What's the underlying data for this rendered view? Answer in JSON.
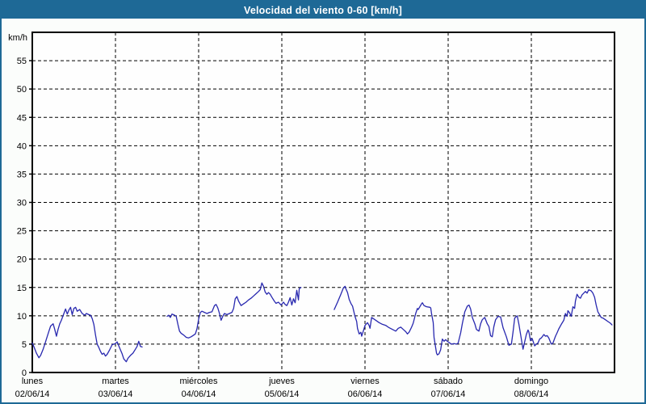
{
  "window": {
    "title": "Velocidad del viento 0-60 [km/h]"
  },
  "colors": {
    "titlebar_bg": "#1e6996",
    "titlebar_text": "#ffffff",
    "frame_border": "#1e6996",
    "page_bg": "#fbfdfb",
    "plot_bg": "#fefefe",
    "grid": "#000000",
    "axis": "#000000",
    "text": "#000000",
    "line": "#2828af"
  },
  "chart_data": {
    "type": "line",
    "title": "Velocidad del viento 0-60 [km/h]",
    "ylabel": "km/h",
    "xlabel": "",
    "y_unit_label": "km/h",
    "ylim": [
      0,
      60
    ],
    "y_ticks": [
      0,
      5,
      10,
      15,
      20,
      25,
      30,
      35,
      40,
      45,
      50,
      55
    ],
    "x_days": 7,
    "grid": "dashed",
    "legend_position": "none",
    "x_ticks": [
      {
        "day_name": "lunes",
        "date": "02/06/14"
      },
      {
        "day_name": "martes",
        "date": "03/06/14"
      },
      {
        "day_name": "miércoles",
        "date": "04/06/14"
      },
      {
        "day_name": "jueves",
        "date": "05/06/14"
      },
      {
        "day_name": "viernes",
        "date": "06/06/14"
      },
      {
        "day_name": "sábado",
        "date": "07/06/14"
      },
      {
        "day_name": "domingo",
        "date": "08/06/14"
      }
    ],
    "series": [
      {
        "name": "Velocidad del viento",
        "unit": "km/h",
        "x_unit": "days_since_monday_00h",
        "segments": [
          [
            [
              0.0,
              5.2
            ],
            [
              0.02,
              4.5
            ],
            [
              0.05,
              3.4
            ],
            [
              0.08,
              2.6
            ],
            [
              0.1,
              3.0
            ],
            [
              0.13,
              4.1
            ],
            [
              0.15,
              5.0
            ],
            [
              0.17,
              5.9
            ],
            [
              0.2,
              7.3
            ],
            [
              0.22,
              8.2
            ],
            [
              0.25,
              8.6
            ],
            [
              0.27,
              7.6
            ],
            [
              0.29,
              6.4
            ],
            [
              0.31,
              7.6
            ],
            [
              0.33,
              8.6
            ],
            [
              0.35,
              9.2
            ],
            [
              0.38,
              10.4
            ],
            [
              0.4,
              11.2
            ],
            [
              0.42,
              10.3
            ],
            [
              0.44,
              11.0
            ],
            [
              0.46,
              11.5
            ],
            [
              0.48,
              10.2
            ],
            [
              0.5,
              11.3
            ],
            [
              0.52,
              11.5
            ],
            [
              0.54,
              10.8
            ],
            [
              0.57,
              11.1
            ],
            [
              0.6,
              10.4
            ],
            [
              0.63,
              10.1
            ],
            [
              0.65,
              10.4
            ],
            [
              0.68,
              10.2
            ],
            [
              0.7,
              10.1
            ],
            [
              0.72,
              9.5
            ],
            [
              0.74,
              8.5
            ],
            [
              0.76,
              6.6
            ],
            [
              0.78,
              5.0
            ],
            [
              0.8,
              4.4
            ],
            [
              0.82,
              3.7
            ],
            [
              0.84,
              3.2
            ],
            [
              0.86,
              3.4
            ],
            [
              0.88,
              2.9
            ],
            [
              0.9,
              3.2
            ],
            [
              0.93,
              4.0
            ],
            [
              0.96,
              4.9
            ],
            [
              1.0,
              5.1
            ],
            [
              1.02,
              5.4
            ],
            [
              1.05,
              4.3
            ],
            [
              1.08,
              3.3
            ],
            [
              1.1,
              2.4
            ],
            [
              1.13,
              1.9
            ],
            [
              1.15,
              2.5
            ],
            [
              1.18,
              3.0
            ],
            [
              1.21,
              3.4
            ],
            [
              1.24,
              4.1
            ],
            [
              1.26,
              4.6
            ],
            [
              1.28,
              5.5
            ],
            [
              1.3,
              4.6
            ],
            [
              1.32,
              4.5
            ]
          ],
          [
            [
              1.62,
              9.9
            ],
            [
              1.64,
              10.1
            ],
            [
              1.66,
              9.7
            ],
            [
              1.68,
              10.3
            ],
            [
              1.71,
              10.1
            ],
            [
              1.73,
              9.9
            ],
            [
              1.75,
              8.5
            ],
            [
              1.77,
              7.3
            ],
            [
              1.79,
              6.9
            ],
            [
              1.82,
              6.6
            ],
            [
              1.85,
              6.2
            ],
            [
              1.88,
              6.1
            ],
            [
              1.91,
              6.3
            ],
            [
              1.93,
              6.5
            ],
            [
              1.96,
              6.8
            ],
            [
              1.98,
              7.7
            ],
            [
              2.0,
              9.4
            ],
            [
              2.02,
              10.6
            ],
            [
              2.04,
              10.8
            ],
            [
              2.07,
              10.6
            ],
            [
              2.1,
              10.4
            ],
            [
              2.13,
              10.6
            ],
            [
              2.16,
              10.7
            ],
            [
              2.19,
              11.8
            ],
            [
              2.21,
              12.0
            ],
            [
              2.23,
              11.4
            ],
            [
              2.25,
              10.4
            ],
            [
              2.27,
              9.2
            ],
            [
              2.29,
              9.9
            ],
            [
              2.31,
              10.4
            ],
            [
              2.34,
              10.2
            ],
            [
              2.37,
              10.4
            ],
            [
              2.4,
              10.6
            ],
            [
              2.42,
              11.3
            ],
            [
              2.44,
              13.0
            ],
            [
              2.46,
              13.4
            ],
            [
              2.48,
              12.6
            ],
            [
              2.51,
              11.8
            ],
            [
              2.54,
              12.1
            ],
            [
              2.57,
              12.4
            ],
            [
              2.6,
              12.8
            ],
            [
              2.63,
              13.1
            ],
            [
              2.66,
              13.5
            ],
            [
              2.69,
              13.9
            ],
            [
              2.72,
              14.3
            ],
            [
              2.74,
              14.6
            ],
            [
              2.76,
              15.8
            ],
            [
              2.78,
              15.2
            ],
            [
              2.8,
              14.2
            ],
            [
              2.82,
              13.8
            ],
            [
              2.84,
              14.1
            ],
            [
              2.86,
              13.8
            ],
            [
              2.88,
              13.3
            ],
            [
              2.91,
              12.6
            ],
            [
              2.93,
              12.2
            ],
            [
              2.96,
              12.4
            ],
            [
              2.99,
              11.9
            ],
            [
              3.02,
              12.4
            ],
            [
              3.04,
              12.0
            ],
            [
              3.06,
              11.8
            ],
            [
              3.08,
              12.4
            ],
            [
              3.1,
              13.2
            ],
            [
              3.12,
              11.9
            ],
            [
              3.14,
              13.0
            ],
            [
              3.16,
              12.3
            ],
            [
              3.18,
              14.5
            ],
            [
              3.2,
              12.8
            ],
            [
              3.21,
              14.8
            ],
            [
              3.23,
              15.0
            ]
          ],
          [
            [
              3.63,
              11.1
            ],
            [
              3.67,
              12.4
            ],
            [
              3.71,
              13.8
            ],
            [
              3.74,
              14.9
            ],
            [
              3.76,
              15.2
            ],
            [
              3.77,
              14.8
            ],
            [
              3.79,
              14.1
            ],
            [
              3.81,
              12.9
            ],
            [
              3.83,
              12.2
            ],
            [
              3.85,
              11.7
            ],
            [
              3.88,
              9.9
            ],
            [
              3.9,
              9.0
            ],
            [
              3.91,
              7.8
            ],
            [
              3.93,
              6.8
            ],
            [
              3.95,
              7.1
            ],
            [
              3.96,
              6.4
            ],
            [
              3.98,
              7.3
            ],
            [
              4.0,
              8.3
            ],
            [
              4.03,
              8.8
            ],
            [
              4.05,
              8.3
            ],
            [
              4.06,
              7.8
            ],
            [
              4.08,
              9.7
            ],
            [
              4.1,
              9.5
            ],
            [
              4.13,
              9.2
            ],
            [
              4.17,
              8.8
            ],
            [
              4.21,
              8.5
            ],
            [
              4.25,
              8.3
            ],
            [
              4.29,
              7.9
            ],
            [
              4.33,
              7.6
            ],
            [
              4.37,
              7.3
            ],
            [
              4.4,
              7.8
            ],
            [
              4.43,
              8.0
            ],
            [
              4.46,
              7.6
            ],
            [
              4.49,
              7.2
            ],
            [
              4.51,
              6.8
            ],
            [
              4.53,
              7.1
            ],
            [
              4.56,
              8.0
            ],
            [
              4.58,
              8.7
            ],
            [
              4.61,
              10.4
            ],
            [
              4.63,
              11.3
            ],
            [
              4.64,
              11.1
            ],
            [
              4.68,
              12.1
            ],
            [
              4.69,
              12.3
            ],
            [
              4.71,
              11.8
            ],
            [
              4.74,
              11.6
            ],
            [
              4.78,
              11.5
            ],
            [
              4.79,
              11.4
            ],
            [
              4.8,
              10.4
            ],
            [
              4.82,
              8.8
            ],
            [
              4.83,
              6.2
            ],
            [
              4.85,
              4.4
            ],
            [
              4.86,
              3.4
            ],
            [
              4.87,
              3.1
            ],
            [
              4.89,
              3.3
            ],
            [
              4.91,
              4.0
            ],
            [
              4.93,
              5.9
            ],
            [
              4.95,
              5.5
            ],
            [
              4.97,
              5.8
            ],
            [
              4.99,
              5.5
            ],
            [
              5.01,
              5.3
            ],
            [
              5.04,
              5.0
            ],
            [
              5.07,
              5.1
            ],
            [
              5.1,
              5.0
            ],
            [
              5.12,
              5.2
            ],
            [
              5.15,
              7.0
            ],
            [
              5.17,
              8.6
            ],
            [
              5.2,
              10.7
            ],
            [
              5.23,
              11.7
            ],
            [
              5.25,
              11.9
            ],
            [
              5.27,
              11.2
            ],
            [
              5.29,
              9.7
            ],
            [
              5.32,
              8.6
            ],
            [
              5.34,
              7.6
            ],
            [
              5.37,
              7.3
            ],
            [
              5.39,
              8.6
            ],
            [
              5.41,
              9.3
            ],
            [
              5.44,
              9.7
            ],
            [
              5.47,
              8.6
            ],
            [
              5.49,
              8.1
            ],
            [
              5.51,
              6.5
            ],
            [
              5.53,
              6.3
            ],
            [
              5.55,
              8.1
            ],
            [
              5.57,
              9.3
            ],
            [
              5.6,
              9.9
            ],
            [
              5.63,
              9.8
            ],
            [
              5.66,
              7.9
            ],
            [
              5.7,
              6.3
            ],
            [
              5.73,
              4.8
            ],
            [
              5.76,
              5.0
            ],
            [
              5.78,
              7.1
            ],
            [
              5.8,
              9.6
            ],
            [
              5.83,
              10.0
            ],
            [
              5.85,
              8.6
            ],
            [
              5.87,
              6.8
            ],
            [
              5.9,
              4.1
            ],
            [
              5.94,
              6.7
            ],
            [
              5.96,
              7.5
            ],
            [
              5.97,
              7.2
            ],
            [
              5.99,
              5.6
            ],
            [
              6.01,
              6.0
            ],
            [
              6.04,
              4.7
            ],
            [
              6.06,
              5.0
            ],
            [
              6.08,
              5.2
            ],
            [
              6.1,
              5.9
            ],
            [
              6.12,
              6.1
            ],
            [
              6.15,
              6.7
            ],
            [
              6.17,
              6.4
            ],
            [
              6.19,
              6.5
            ],
            [
              6.21,
              6.1
            ],
            [
              6.24,
              5.0
            ],
            [
              6.26,
              5.2
            ],
            [
              6.29,
              6.4
            ],
            [
              6.31,
              7.0
            ],
            [
              6.33,
              7.7
            ],
            [
              6.36,
              8.5
            ],
            [
              6.39,
              9.2
            ],
            [
              6.41,
              10.4
            ],
            [
              6.43,
              9.9
            ],
            [
              6.44,
              10.9
            ],
            [
              6.46,
              10.5
            ],
            [
              6.48,
              9.9
            ],
            [
              6.5,
              11.6
            ],
            [
              6.52,
              11.3
            ],
            [
              6.53,
              12.6
            ],
            [
              6.55,
              13.8
            ],
            [
              6.57,
              13.3
            ],
            [
              6.59,
              13.1
            ],
            [
              6.61,
              13.7
            ],
            [
              6.63,
              14.0
            ],
            [
              6.65,
              14.3
            ],
            [
              6.67,
              14.0
            ],
            [
              6.69,
              14.6
            ],
            [
              6.72,
              14.4
            ],
            [
              6.74,
              14.0
            ],
            [
              6.76,
              13.3
            ],
            [
              6.78,
              11.9
            ],
            [
              6.8,
              10.7
            ],
            [
              6.82,
              10.2
            ],
            [
              6.84,
              9.7
            ],
            [
              6.86,
              9.6
            ],
            [
              6.89,
              9.3
            ],
            [
              6.92,
              9.0
            ],
            [
              6.95,
              8.7
            ],
            [
              6.97,
              8.4
            ]
          ]
        ]
      }
    ]
  }
}
